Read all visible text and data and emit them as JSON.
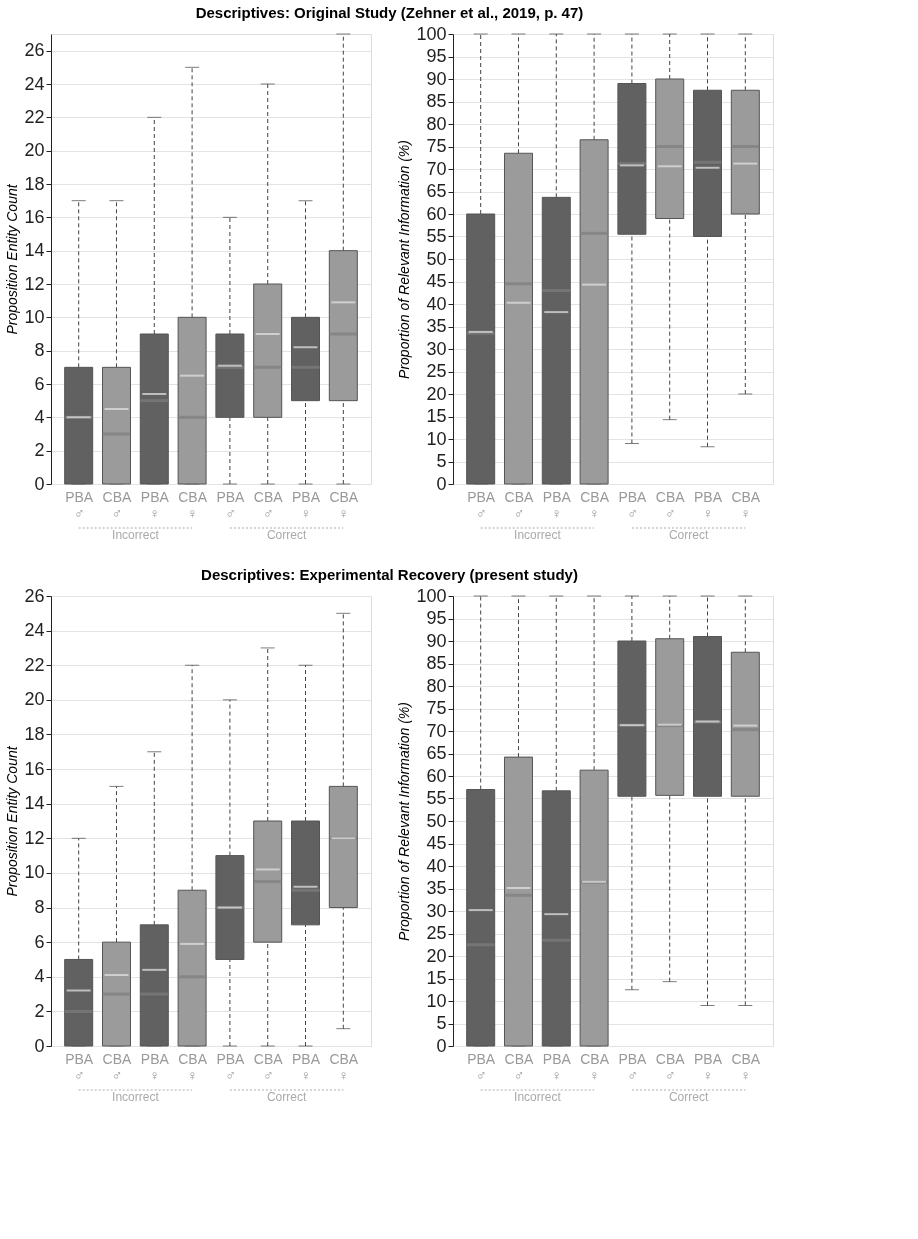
{
  "chart_data": [
    {
      "type": "box",
      "title": "Descriptives: Original Study (Zehner et al., 2019, p. 47)",
      "ylabel": "Proposition Entity Count",
      "categories": [
        "PBA ♂",
        "CBA ♂",
        "PBA ♀",
        "CBA ♀",
        "PBA ♂",
        "CBA ♂",
        "PBA ♀",
        "CBA ♀"
      ],
      "colors": [
        "#616161",
        "#9b9b9b",
        "#616161",
        "#9b9b9b",
        "#616161",
        "#9b9b9b",
        "#616161",
        "#9b9b9b"
      ],
      "boxes": [
        {
          "low": 0,
          "q1": 0,
          "median": 4,
          "q3": 7,
          "high": 17,
          "mean": 4.0
        },
        {
          "low": 0,
          "q1": 0,
          "median": 3,
          "q3": 7,
          "high": 17,
          "mean": 4.5
        },
        {
          "low": 0,
          "q1": 0,
          "median": 5,
          "q3": 9,
          "high": 22,
          "mean": 5.4
        },
        {
          "low": 0,
          "q1": 0,
          "median": 4,
          "q3": 10,
          "high": 25,
          "mean": 6.5
        },
        {
          "low": 0,
          "q1": 4,
          "median": 7,
          "q3": 9,
          "high": 16,
          "mean": 7.1
        },
        {
          "low": 0,
          "q1": 4,
          "median": 7,
          "q3": 12,
          "high": 24,
          "mean": 9.0
        },
        {
          "low": 0,
          "q1": 5,
          "median": 7,
          "q3": 10,
          "high": 17,
          "mean": 8.2
        },
        {
          "low": 0,
          "q1": 5,
          "median": 9,
          "q3": 14,
          "high": 27,
          "mean": 10.9
        }
      ],
      "ylim": [
        0,
        27
      ],
      "yticks": [
        0,
        2,
        4,
        6,
        8,
        10,
        12,
        14,
        16,
        18,
        20,
        22,
        24,
        26
      ],
      "grid": "y",
      "legend": false,
      "annotations": [
        "Incorrect",
        "Correct"
      ]
    },
    {
      "type": "box",
      "ylabel": "Proportion of Relevant Information (%)",
      "categories": [
        "PBA ♂",
        "CBA ♂",
        "PBA ♀",
        "CBA ♀",
        "PBA ♂",
        "CBA ♂",
        "PBA ♀",
        "CBA ♀"
      ],
      "colors": [
        "#616161",
        "#9b9b9b",
        "#616161",
        "#9b9b9b",
        "#616161",
        "#9b9b9b",
        "#616161",
        "#9b9b9b"
      ],
      "boxes": [
        {
          "low": 0,
          "q1": 0,
          "median": 33.5,
          "q3": 60,
          "high": 100,
          "mean": 33.8
        },
        {
          "low": 0,
          "q1": 0,
          "median": 44.5,
          "q3": 73.5,
          "high": 100,
          "mean": 40.3
        },
        {
          "low": 0,
          "q1": 0,
          "median": 43,
          "q3": 63.7,
          "high": 100,
          "mean": 38.2
        },
        {
          "low": 0,
          "q1": 0,
          "median": 55.7,
          "q3": 76.5,
          "high": 100,
          "mean": 44.3
        },
        {
          "low": 9,
          "q1": 55.5,
          "median": 71.2,
          "q3": 89,
          "high": 100,
          "mean": 70.8
        },
        {
          "low": 14.3,
          "q1": 59,
          "median": 75,
          "q3": 90,
          "high": 100,
          "mean": 70.6
        },
        {
          "low": 8.3,
          "q1": 55,
          "median": 71.5,
          "q3": 87.5,
          "high": 100,
          "mean": 70.3
        },
        {
          "low": 20,
          "q1": 60,
          "median": 75,
          "q3": 87.5,
          "high": 100,
          "mean": 71.2
        }
      ],
      "ylim": [
        0,
        100
      ],
      "yticks": [
        0,
        5,
        10,
        15,
        20,
        25,
        30,
        35,
        40,
        45,
        50,
        55,
        60,
        65,
        70,
        75,
        80,
        85,
        90,
        95,
        100
      ],
      "grid": "y",
      "legend": false,
      "annotations": [
        "Incorrect",
        "Correct"
      ]
    },
    {
      "type": "box",
      "title": "Descriptives: Experimental Recovery (present study)",
      "ylabel": "Proposition Entity Count",
      "categories": [
        "PBA ♂",
        "CBA ♂",
        "PBA ♀",
        "CBA ♀",
        "PBA ♂",
        "CBA ♂",
        "PBA ♀",
        "CBA ♀"
      ],
      "colors": [
        "#616161",
        "#9b9b9b",
        "#616161",
        "#9b9b9b",
        "#616161",
        "#9b9b9b",
        "#616161",
        "#9b9b9b"
      ],
      "boxes": [
        {
          "low": 0,
          "q1": 0,
          "median": 2,
          "q3": 5,
          "high": 12,
          "mean": 3.2
        },
        {
          "low": 0,
          "q1": 0,
          "median": 3,
          "q3": 6,
          "high": 15,
          "mean": 4.1
        },
        {
          "low": 0,
          "q1": 0,
          "median": 3,
          "q3": 7,
          "high": 17,
          "mean": 4.4
        },
        {
          "low": 0,
          "q1": 0,
          "median": 4,
          "q3": 9,
          "high": 22,
          "mean": 5.9
        },
        {
          "low": 0,
          "q1": 5,
          "median": 8,
          "q3": 11,
          "high": 20,
          "mean": 8.0
        },
        {
          "low": 0,
          "q1": 6,
          "median": 9.5,
          "q3": 13,
          "high": 23,
          "mean": 10.2
        },
        {
          "low": 0,
          "q1": 7,
          "median": 9,
          "q3": 13,
          "high": 22,
          "mean": 9.2
        },
        {
          "low": 1,
          "q1": 8,
          "median": 12,
          "q3": 15,
          "high": 25,
          "mean": 12.0
        }
      ],
      "ylim": [
        0,
        26
      ],
      "yticks": [
        0,
        2,
        4,
        6,
        8,
        10,
        12,
        14,
        16,
        18,
        20,
        22,
        24,
        26
      ],
      "grid": "y",
      "legend": false,
      "annotations": [
        "Incorrect",
        "Correct"
      ]
    },
    {
      "type": "box",
      "ylabel": "Proportion of Relevant Information (%)",
      "categories": [
        "PBA ♂",
        "CBA ♂",
        "PBA ♀",
        "CBA ♀",
        "PBA ♂",
        "CBA ♂",
        "PBA ♀",
        "CBA ♀"
      ],
      "colors": [
        "#616161",
        "#9b9b9b",
        "#616161",
        "#9b9b9b",
        "#616161",
        "#9b9b9b",
        "#616161",
        "#9b9b9b"
      ],
      "boxes": [
        {
          "low": 0,
          "q1": 0,
          "median": 22.5,
          "q3": 57,
          "high": 100,
          "mean": 30.2
        },
        {
          "low": 0,
          "q1": 0,
          "median": 33.5,
          "q3": 64.2,
          "high": 100,
          "mean": 35.1
        },
        {
          "low": 0,
          "q1": 0,
          "median": 23.5,
          "q3": 56.7,
          "high": 100,
          "mean": 29.3
        },
        {
          "low": 0,
          "q1": 0,
          "median": 36.4,
          "q3": 61.3,
          "high": 100,
          "mean": 36.5
        },
        {
          "low": 12.5,
          "q1": 55.5,
          "median": 71.3,
          "q3": 90,
          "high": 100,
          "mean": 71.3
        },
        {
          "low": 14.3,
          "q1": 55.7,
          "median": 71.2,
          "q3": 90.5,
          "high": 100,
          "mean": 71.4
        },
        {
          "low": 9,
          "q1": 55.5,
          "median": 72,
          "q3": 91,
          "high": 100,
          "mean": 72.1
        },
        {
          "low": 9,
          "q1": 55.5,
          "median": 70.3,
          "q3": 87.5,
          "high": 100,
          "mean": 71.2
        }
      ],
      "ylim": [
        0,
        100
      ],
      "yticks": [
        0,
        5,
        10,
        15,
        20,
        25,
        30,
        35,
        40,
        45,
        50,
        55,
        60,
        65,
        70,
        75,
        80,
        85,
        90,
        95,
        100
      ],
      "grid": "y",
      "legend": false,
      "annotations": [
        "Incorrect",
        "Correct"
      ]
    }
  ]
}
